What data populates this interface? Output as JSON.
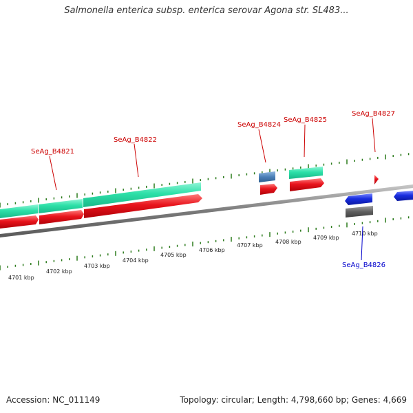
{
  "title": "Salmonella enterica subsp. enterica serovar Agona str. SL483...",
  "footer": {
    "accession": "Accession: NC_011149",
    "summary": "Topology: circular; Length: 4,798,660 bp; Genes: 4,669"
  },
  "colors": {
    "forward_cds": "#e8141c",
    "forward_gene": "#2de0a8",
    "reverse_cds": "#1a2ee0",
    "other_feature": "#4a7fb8",
    "grey_feature": "#606060",
    "tick": "#2a7a1a",
    "forward_label": "#cc0000",
    "reverse_label": "#0000cc"
  },
  "scale_labels": [
    "4701 kbp",
    "4702 kbp",
    "4703 kbp",
    "4704 kbp",
    "4705 kbp",
    "4706 kbp",
    "4707 kbp",
    "4708 kbp",
    "4709 kbp",
    "4710 kbp"
  ],
  "genes": [
    {
      "name": "SeAg_B4821",
      "strand": "forward"
    },
    {
      "name": "SeAg_B4822",
      "strand": "forward"
    },
    {
      "name": "SeAg_B4824",
      "strand": "forward"
    },
    {
      "name": "SeAg_B4825",
      "strand": "forward"
    },
    {
      "name": "SeAg_B4827",
      "strand": "forward"
    },
    {
      "name": "SeAg_B4826",
      "strand": "reverse"
    }
  ]
}
